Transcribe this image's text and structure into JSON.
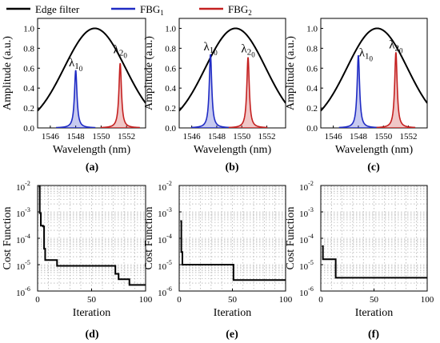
{
  "chart_data": [
    {
      "panel": "(a)",
      "type": "line",
      "xlabel": "Wavelength (nm)",
      "ylabel": "Amplitude (a.u.)",
      "xlim": [
        1545,
        1553.5
      ],
      "ylim": [
        0,
        1.1
      ],
      "xticks": [
        "1546",
        "1548",
        "1550",
        "1552"
      ],
      "yticks": [
        "0.0",
        "0.2",
        "0.4",
        "0.6",
        "0.8",
        "1.0"
      ],
      "edge_filter": {
        "center": 1549.5,
        "width": 2.4,
        "peak": 1.0
      },
      "fbg1": {
        "center": 1548.0,
        "peak": 0.58,
        "width": 0.12
      },
      "fbg2": {
        "center": 1551.5,
        "peak": 0.65,
        "width": 0.12
      },
      "annotations": [
        {
          "base": "λ",
          "sub": "1",
          "sub2": "0",
          "x": 1548.0,
          "y": 0.62
        },
        {
          "base": "λ",
          "sub": "2",
          "sub2": "0",
          "x": 1551.5,
          "y": 0.75
        }
      ]
    },
    {
      "panel": "(b)",
      "type": "line",
      "xlabel": "Wavelength (nm)",
      "ylabel": "Amplitude (a.u.)",
      "xlim": [
        1545,
        1553.5
      ],
      "ylim": [
        0,
        1.1
      ],
      "xticks": [
        "1546",
        "1548",
        "1550",
        "1552"
      ],
      "yticks": [
        "0.0",
        "0.2",
        "0.4",
        "0.6",
        "0.8",
        "1.0"
      ],
      "edge_filter": {
        "center": 1549.5,
        "width": 2.4,
        "peak": 1.0
      },
      "fbg1": {
        "center": 1547.5,
        "peak": 0.74,
        "width": 0.12
      },
      "fbg2": {
        "center": 1550.5,
        "peak": 0.71,
        "width": 0.12
      },
      "annotations": [
        {
          "base": "λ",
          "sub": "1",
          "sub2": "0",
          "x": 1547.5,
          "y": 0.78
        },
        {
          "base": "λ",
          "sub": "2",
          "sub2": "0",
          "x": 1550.5,
          "y": 0.76
        }
      ]
    },
    {
      "panel": "(c)",
      "type": "line",
      "xlabel": "Wavelength (nm)",
      "ylabel": "Amplitude (a.u.)",
      "xlim": [
        1545,
        1553.5
      ],
      "ylim": [
        0,
        1.1
      ],
      "xticks": [
        "1546",
        "1548",
        "1550",
        "1552"
      ],
      "yticks": [
        "0.0",
        "0.2",
        "0.4",
        "0.6",
        "0.8",
        "1.0"
      ],
      "edge_filter": {
        "center": 1549.5,
        "width": 2.4,
        "peak": 1.0
      },
      "fbg1": {
        "center": 1548.0,
        "peak": 0.73,
        "width": 0.12
      },
      "fbg2": {
        "center": 1551.0,
        "peak": 0.76,
        "width": 0.12
      },
      "annotations": [
        {
          "base": "λ",
          "sub": "1",
          "sub2": "0",
          "x": 1548.6,
          "y": 0.72
        },
        {
          "base": "λ",
          "sub": "2",
          "sub2": "0",
          "x": 1551.0,
          "y": 0.8
        }
      ]
    },
    {
      "panel": "(d)",
      "type": "line",
      "yscale": "log",
      "xlabel": "Iteration",
      "ylabel": "Cost Function",
      "xlim": [
        0,
        100
      ],
      "ylim": [
        1e-06,
        0.01
      ],
      "xticks": [
        "0",
        "50",
        "100"
      ],
      "yticks": [
        {
          "base": "10",
          "exp": "-6"
        },
        {
          "base": "10",
          "exp": "-5"
        },
        {
          "base": "10",
          "exp": "-4"
        },
        {
          "base": "10",
          "exp": "-3"
        },
        {
          "base": "10",
          "exp": "-2"
        }
      ],
      "grid": true,
      "series": [
        {
          "x": [
            1,
            2,
            3,
            4,
            5,
            6,
            7,
            8,
            10,
            12,
            15,
            18,
            20,
            25,
            30,
            40,
            50,
            60,
            70,
            72,
            75,
            80,
            85,
            90,
            100
          ],
          "y": [
            0.009,
            0.0009,
            0.0003,
            0.0003,
            0.00028,
            4e-05,
            1.5e-05,
            1.5e-05,
            1.5e-05,
            1.5e-05,
            1.5e-05,
            9e-06,
            9e-06,
            9e-06,
            9e-06,
            9e-06,
            9e-06,
            9e-06,
            9e-06,
            4.5e-06,
            2.8e-06,
            2.8e-06,
            1.7e-06,
            1.7e-06,
            1.7e-06
          ]
        }
      ]
    },
    {
      "panel": "(e)",
      "type": "line",
      "yscale": "log",
      "xlabel": "Iteration",
      "ylabel": "Cost Function",
      "xlim": [
        0,
        100
      ],
      "ylim": [
        1e-06,
        0.01
      ],
      "xticks": [
        "0",
        "50",
        "100"
      ],
      "yticks": [
        {
          "base": "10",
          "exp": "-6"
        },
        {
          "base": "10",
          "exp": "-5"
        },
        {
          "base": "10",
          "exp": "-4"
        },
        {
          "base": "10",
          "exp": "-3"
        },
        {
          "base": "10",
          "exp": "-2"
        }
      ],
      "grid": true,
      "series": [
        {
          "x": [
            1,
            2,
            3,
            4,
            5,
            10,
            20,
            30,
            40,
            50,
            51,
            52,
            60,
            70,
            80,
            90,
            100
          ],
          "y": [
            0.00045,
            3e-05,
            1e-05,
            1e-05,
            1e-05,
            1e-05,
            1e-05,
            1e-05,
            1e-05,
            1e-05,
            2.6e-06,
            2.6e-06,
            2.6e-06,
            2.6e-06,
            2.6e-06,
            2.6e-06,
            2.6e-06
          ]
        }
      ]
    },
    {
      "panel": "(f)",
      "type": "line",
      "yscale": "log",
      "xlabel": "Iteration",
      "ylabel": "Cost Function",
      "xlim": [
        0,
        100
      ],
      "ylim": [
        1e-06,
        0.01
      ],
      "xticks": [
        "0",
        "50",
        "100"
      ],
      "yticks": [
        {
          "base": "10",
          "exp": "-6"
        },
        {
          "base": "10",
          "exp": "-5"
        },
        {
          "base": "10",
          "exp": "-4"
        },
        {
          "base": "10",
          "exp": "-3"
        },
        {
          "base": "10",
          "exp": "-2"
        }
      ],
      "grid": true,
      "series": [
        {
          "x": [
            1,
            2,
            3,
            5,
            10,
            13,
            14,
            20,
            30,
            40,
            50,
            60,
            70,
            80,
            90,
            100
          ],
          "y": [
            5e-05,
            1.6e-05,
            1.6e-05,
            1.6e-05,
            1.6e-05,
            1.6e-05,
            3.2e-06,
            3.2e-06,
            3.2e-06,
            3.2e-06,
            3.2e-06,
            3.2e-06,
            3.2e-06,
            3.2e-06,
            3.2e-06,
            3.2e-06
          ]
        }
      ]
    }
  ],
  "legend": {
    "placement": "top",
    "items": [
      {
        "label": "Edge filter",
        "sub": "",
        "color": "#000000"
      },
      {
        "label": "FBG",
        "sub": "1",
        "color": "#1f2bc4"
      },
      {
        "label": "FBG",
        "sub": "2",
        "color": "#c42020"
      }
    ]
  },
  "colors": {
    "edge": "#000000",
    "fbg1": "#1f2bc4",
    "fbg2": "#c42020",
    "cost": "#000000",
    "grid": "#9a9a9a"
  }
}
